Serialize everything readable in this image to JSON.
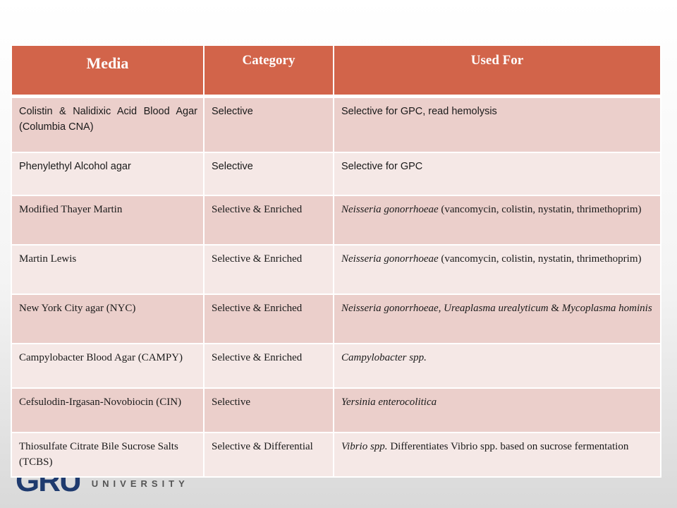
{
  "table": {
    "headers": {
      "media": "Media",
      "category": "Category",
      "used_for": "Used For"
    },
    "rows": [
      {
        "media": "Colistin & Nalidixic Acid Blood Agar (Columbia CNA)",
        "category": "Selective",
        "used_italic": "",
        "used_plain": "Selective for GPC, read hemolysis"
      },
      {
        "media": "Phenylethyl Alcohol agar",
        "category": "Selective",
        "used_italic": "",
        "used_plain": "Selective for GPC"
      },
      {
        "media": "Modified Thayer Martin",
        "category": "Selective & Enriched",
        "used_italic": "Neisseria gonorrhoeae",
        "used_plain": " (vancomycin, colistin, nystatin, thrimethoprim)"
      },
      {
        "media": "Martin Lewis",
        "category": "Selective & Enriched",
        "used_italic": "Neisseria gonorrhoeae",
        "used_plain": " (vancomycin, colistin, nystatin, thrimethoprim)"
      },
      {
        "media": "New York City agar (NYC)",
        "category": "Selective & Enriched",
        "used_italic": "Neisseria gonorrhoeae, Ureaplasma urealyticum",
        "used_mid": " & ",
        "used_italic2": "Mycoplasma hominis"
      },
      {
        "media": "Campylobacter Blood Agar (CAMPY)",
        "category": "Selective & Enriched",
        "used_italic": "Campylobacter spp.",
        "used_plain": ""
      },
      {
        "media": "Cefsulodin-Irgasan-Novobiocin (CIN)",
        "category": "Selective",
        "used_italic": "Yersinia enterocolitica",
        "used_plain": ""
      },
      {
        "media": "Thiosulfate Citrate Bile Sucrose Salts (TCBS)",
        "category": "Selective & Differential",
        "used_italic": "Vibrio spp.",
        "used_plain": "  Differentiates Vibrio spp. based on sucrose fermentation"
      }
    ]
  },
  "footer": {
    "logo_mark": "GRU",
    "logo_text": "UNIVERSITY"
  }
}
